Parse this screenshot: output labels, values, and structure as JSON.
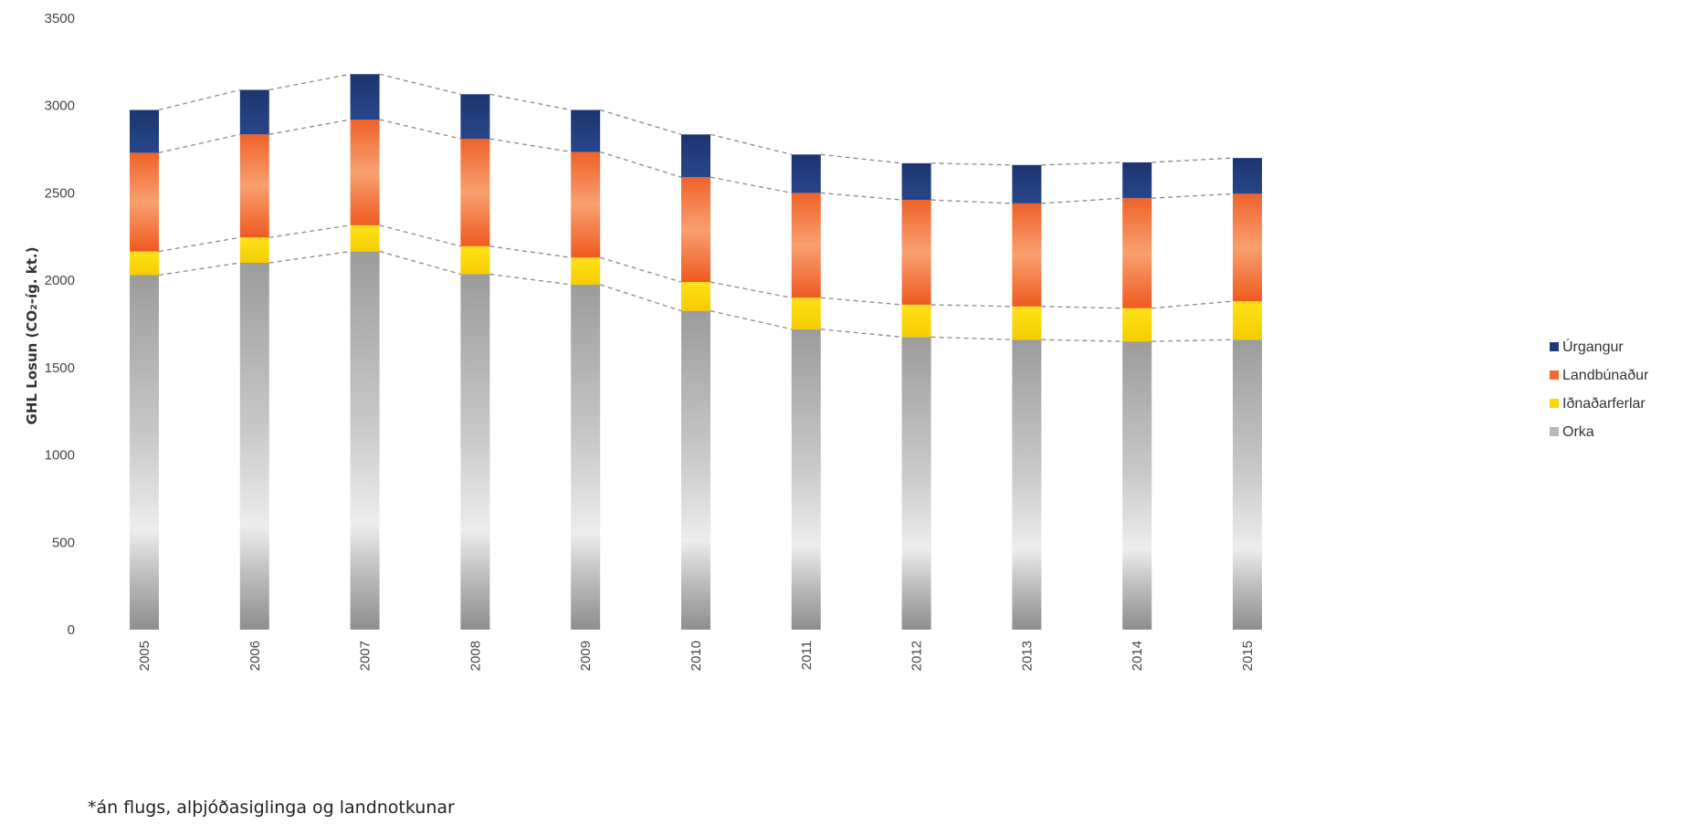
{
  "chart_data": {
    "type": "bar",
    "stacked": true,
    "categories": [
      "2005",
      "2006",
      "2007",
      "2008",
      "2009",
      "2010",
      "2011",
      "2012",
      "2013",
      "2014",
      "2015"
    ],
    "series": [
      {
        "name": "Orka",
        "color": "#9a9a9a",
        "values": [
          2030,
          2100,
          2165,
          2035,
          1975,
          1825,
          1720,
          1675,
          1660,
          1650,
          1660
        ]
      },
      {
        "name": "Iðnaðarferlar",
        "color": "#ffd700",
        "values": [
          135,
          145,
          150,
          160,
          155,
          165,
          180,
          185,
          190,
          190,
          220
        ]
      },
      {
        "name": "Landbúnaður",
        "color": "#f26b2d",
        "values": [
          565,
          590,
          605,
          615,
          605,
          600,
          600,
          600,
          590,
          630,
          615
        ]
      },
      {
        "name": "Úrgangur",
        "color": "#1f3a78",
        "values": [
          245,
          255,
          260,
          255,
          240,
          245,
          220,
          210,
          220,
          205,
          205
        ]
      }
    ],
    "title": "",
    "xlabel": "",
    "ylabel": "GHL Losun (CO₂-íg. kt.)",
    "ylim": [
      0,
      3500
    ],
    "yticks": [
      0,
      500,
      1000,
      1500,
      2000,
      2500,
      3000,
      3500
    ],
    "grid": false,
    "legend_position": "right",
    "connector_lines": "dashed",
    "footnote": "*án flugs, alþjóðasiglinga og landnotkunar"
  }
}
